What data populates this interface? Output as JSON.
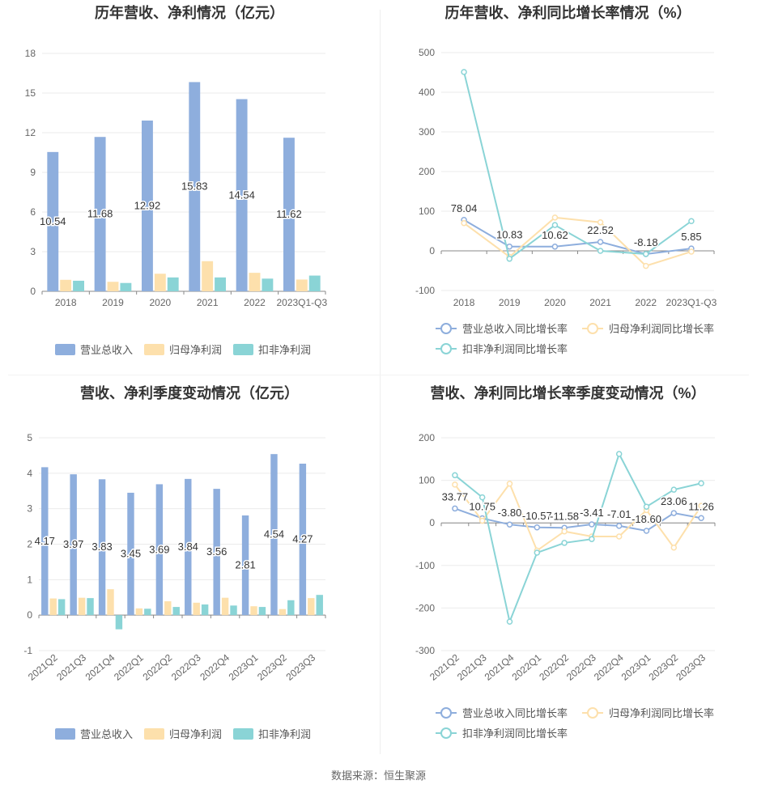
{
  "colors": {
    "revenue": "#8eaedd",
    "net_profit": "#fde0ac",
    "deducted": "#8ad4d6",
    "grid": "#ebebeb",
    "axis": "#888888",
    "label": "#333333",
    "title": "#333333"
  },
  "legend": {
    "bar": [
      "营业总收入",
      "归母净利润",
      "扣非净利润"
    ],
    "line": [
      "营业总收入同比增长率",
      "归母净利润同比增长率",
      "扣非净利润同比增长率"
    ]
  },
  "source": "数据来源：恒生聚源",
  "chart_data": [
    {
      "id": "annual-bar",
      "type": "bar",
      "title": "历年营收、净利情况（亿元）",
      "categories": [
        "2018",
        "2019",
        "2020",
        "2021",
        "2022",
        "2023Q1-Q3"
      ],
      "ylim": [
        0,
        18
      ],
      "yticks": [
        0,
        3,
        6,
        9,
        12,
        15,
        18
      ],
      "series": [
        {
          "name": "营业总收入",
          "values": [
            10.54,
            11.68,
            12.92,
            15.83,
            14.54,
            11.62
          ],
          "labels": [
            "10.54",
            "11.68",
            "12.92",
            "15.83",
            "14.54",
            "11.62"
          ]
        },
        {
          "name": "归母净利润",
          "values": [
            0.87,
            0.72,
            1.33,
            2.28,
            1.4,
            0.89
          ]
        },
        {
          "name": "扣非净利润",
          "values": [
            0.8,
            0.63,
            1.05,
            1.05,
            0.96,
            1.19
          ]
        }
      ],
      "grid": true,
      "legend_position": "bottom"
    },
    {
      "id": "annual-growth",
      "type": "line",
      "title": "历年营收、净利同比增长率情况（%）",
      "categories": [
        "2018",
        "2019",
        "2020",
        "2021",
        "2022",
        "2023Q1-Q3"
      ],
      "ylim": [
        -100,
        500
      ],
      "yticks": [
        -100,
        0,
        100,
        200,
        300,
        400,
        500
      ],
      "series": [
        {
          "name": "营业总收入同比增长率",
          "values": [
            78.04,
            10.83,
            10.62,
            22.52,
            -8.18,
            5.85
          ],
          "labels": [
            "78.04",
            "10.83",
            "10.62",
            "22.52",
            "-8.18",
            "5.85"
          ]
        },
        {
          "name": "归母净利润同比增长率",
          "values": [
            70,
            -15,
            84,
            72,
            -38,
            -2
          ]
        },
        {
          "name": "扣非净利润同比增长率",
          "values": [
            451,
            -20,
            65,
            0,
            -8,
            75
          ]
        }
      ],
      "grid": true,
      "legend_position": "bottom"
    },
    {
      "id": "quarterly-bar",
      "type": "bar",
      "title": "营收、净利季度变动情况（亿元）",
      "categories": [
        "2021Q2",
        "2021Q3",
        "2021Q4",
        "2022Q1",
        "2022Q2",
        "2022Q3",
        "2022Q4",
        "2023Q1",
        "2023Q2",
        "2023Q3"
      ],
      "ylim": [
        -1,
        5
      ],
      "yticks": [
        -1,
        0,
        1,
        2,
        3,
        4,
        5
      ],
      "series": [
        {
          "name": "营业总收入",
          "values": [
            4.17,
            3.97,
            3.83,
            3.45,
            3.69,
            3.84,
            3.56,
            2.81,
            4.54,
            4.27
          ],
          "labels": [
            "4.17",
            "3.97",
            "3.83",
            "3.45",
            "3.69",
            "3.84",
            "3.56",
            "2.81",
            "4.54",
            "4.27"
          ]
        },
        {
          "name": "归母净利润",
          "values": [
            0.47,
            0.49,
            0.73,
            0.19,
            0.39,
            0.35,
            0.49,
            0.25,
            0.17,
            0.48
          ]
        },
        {
          "name": "扣非净利润",
          "values": [
            0.45,
            0.48,
            -0.4,
            0.18,
            0.23,
            0.3,
            0.27,
            0.23,
            0.42,
            0.57
          ]
        }
      ],
      "grid": true,
      "legend_position": "bottom"
    },
    {
      "id": "quarterly-growth",
      "type": "line",
      "title": "营收、净利同比增长率季度变动情况（%）",
      "categories": [
        "2021Q2",
        "2021Q3",
        "2021Q4",
        "2022Q1",
        "2022Q2",
        "2022Q3",
        "2022Q4",
        "2023Q1",
        "2023Q2",
        "2023Q3"
      ],
      "ylim": [
        -300,
        200
      ],
      "yticks": [
        -300,
        -200,
        -100,
        0,
        100,
        200
      ],
      "series": [
        {
          "name": "营业总收入同比增长率",
          "values": [
            33.77,
            10.75,
            -3.8,
            -10.57,
            -11.58,
            -3.41,
            -7.01,
            -18.6,
            23.06,
            11.26
          ],
          "labels": [
            "33.77",
            "10.75",
            "-3.80",
            "-10.57",
            "-11.58",
            "-3.41",
            "-7.01",
            "-18.60",
            "23.06",
            "11.26"
          ]
        },
        {
          "name": "归母净利润同比增长率",
          "values": [
            90,
            5,
            92,
            -65,
            -20,
            -32,
            -32,
            30,
            -58,
            40
          ]
        },
        {
          "name": "扣非净利润同比增长率",
          "values": [
            112,
            60,
            -232,
            -70,
            -47,
            -38,
            162,
            38,
            78,
            93
          ]
        }
      ],
      "grid": true,
      "legend_position": "bottom"
    }
  ]
}
